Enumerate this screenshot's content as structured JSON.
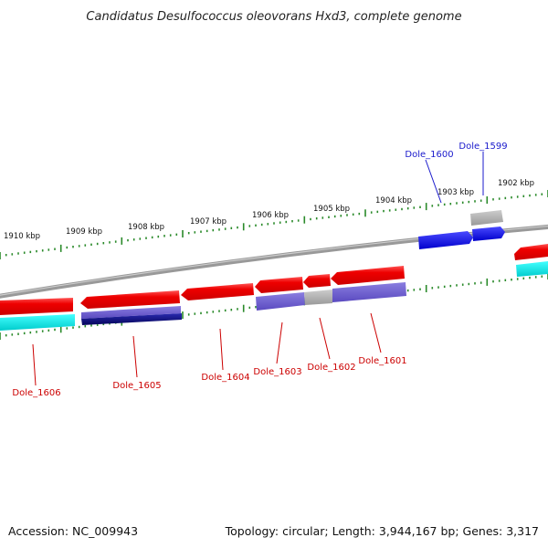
{
  "title": "Candidatus Desulfococcus oleovorans Hxd3, complete genome",
  "footer": {
    "accession": "Accession: NC_009943",
    "summary": "Topology: circular; Length: 3,944,167 bp; Genes: 3,317"
  },
  "scale_labels": [
    "1910 kbp",
    "1909 kbp",
    "1908 kbp",
    "1907 kbp",
    "1906 kbp",
    "1905 kbp",
    "1904 kbp",
    "1903 kbp",
    "1902 kbp"
  ],
  "gene_labels": [
    {
      "name": "Dole_1600",
      "strand": "forward"
    },
    {
      "name": "Dole_1599",
      "strand": "forward"
    },
    {
      "name": "Dole_1606",
      "strand": "reverse"
    },
    {
      "name": "Dole_1605",
      "strand": "reverse"
    },
    {
      "name": "Dole_1604",
      "strand": "reverse"
    },
    {
      "name": "Dole_1603",
      "strand": "reverse"
    },
    {
      "name": "Dole_1602",
      "strand": "reverse"
    },
    {
      "name": "Dole_1601",
      "strand": "reverse"
    }
  ],
  "colors": {
    "forward_gene": "#1a1acc",
    "reverse_gene": "#cc0000",
    "cds_red": "#ee1111",
    "cds_blue": "#1111dd",
    "feature_purple": "#6f5fd0",
    "feature_navy": "#0a0a7a",
    "feature_cyan": "#00e5e5",
    "feature_gray": "#aaaaaa",
    "backbone": "#888888",
    "ticks": "#2a8a2a"
  }
}
